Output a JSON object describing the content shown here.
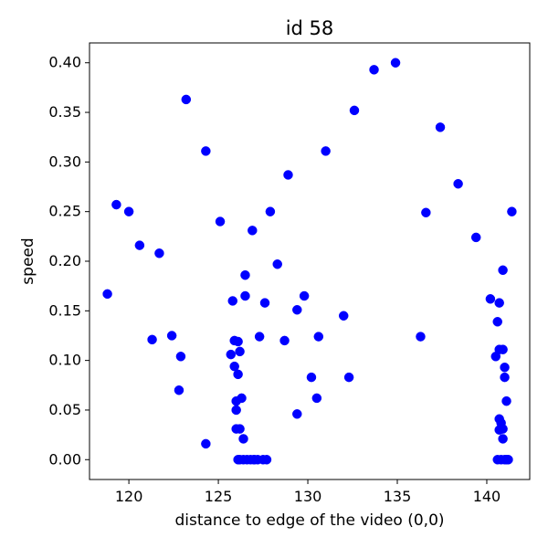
{
  "chart_data": {
    "type": "scatter",
    "title": "id 58",
    "xlabel": "distance to edge of the video (0,0)",
    "ylabel": "speed",
    "xlim": [
      117.8,
      142.4
    ],
    "ylim": [
      -0.02,
      0.42
    ],
    "xticks": [
      120,
      125,
      130,
      135,
      140
    ],
    "yticks": [
      0.0,
      0.05,
      0.1,
      0.15,
      0.2,
      0.25,
      0.3,
      0.35,
      0.4
    ],
    "xtick_labels": [
      "120",
      "125",
      "130",
      "135",
      "140"
    ],
    "ytick_labels": [
      "0.00",
      "0.05",
      "0.10",
      "0.15",
      "0.20",
      "0.25",
      "0.30",
      "0.35",
      "0.40"
    ],
    "grid": false,
    "marker_color": "#0000ff",
    "series": [
      {
        "x": [
          118.8,
          119.3,
          120.0,
          120.6,
          121.3,
          121.7,
          122.4,
          122.8,
          122.9,
          123.2,
          124.3,
          124.3,
          125.1,
          125.7,
          125.8,
          125.9,
          125.9,
          126.0,
          126.0,
          126.0,
          126.1,
          126.1,
          126.1,
          126.2,
          126.2,
          126.2,
          126.3,
          126.4,
          126.5,
          126.5,
          126.6,
          126.9,
          127.0,
          127.3,
          127.5,
          127.6,
          127.7,
          127.9,
          128.3,
          128.7,
          128.9,
          129.4,
          129.4,
          129.8,
          130.2,
          130.5,
          130.6,
          131.0,
          132.0,
          132.3,
          132.6,
          133.7,
          134.9,
          136.3,
          136.6,
          137.4,
          138.4,
          139.4,
          140.2,
          140.5,
          140.6,
          140.6,
          140.7,
          140.7,
          140.7,
          140.7,
          140.8,
          140.8,
          140.9,
          140.9,
          140.9,
          141.0,
          141.0,
          141.0,
          141.1,
          141.2,
          141.4,
          126.4,
          126.8,
          127.0,
          127.2,
          140.9,
          141.1
        ],
        "y": [
          0.167,
          0.257,
          0.25,
          0.216,
          0.121,
          0.208,
          0.125,
          0.07,
          0.104,
          0.363,
          0.016,
          0.311,
          0.24,
          0.106,
          0.16,
          0.094,
          0.12,
          0.059,
          0.05,
          0.031,
          0.0,
          0.119,
          0.086,
          0.109,
          0.031,
          0.0,
          0.062,
          0.021,
          0.186,
          0.165,
          0.0,
          0.231,
          0.0,
          0.124,
          0.0,
          0.158,
          0.0,
          0.25,
          0.197,
          0.12,
          0.287,
          0.151,
          0.046,
          0.165,
          0.083,
          0.062,
          0.124,
          0.311,
          0.145,
          0.083,
          0.352,
          0.393,
          0.4,
          0.124,
          0.249,
          0.335,
          0.278,
          0.224,
          0.162,
          0.104,
          0.139,
          0.0,
          0.158,
          0.111,
          0.041,
          0.03,
          0.037,
          0.0,
          0.111,
          0.021,
          0.191,
          0.0,
          0.083,
          0.093,
          0.059,
          0.0,
          0.25,
          0.0,
          0.0,
          0.0,
          0.0,
          0.031,
          0.0
        ]
      }
    ]
  }
}
